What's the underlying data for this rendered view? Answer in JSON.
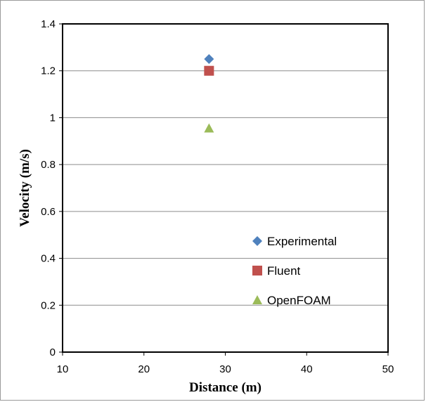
{
  "chart_data": {
    "type": "scatter",
    "title": "",
    "xlabel": "Distance (m)",
    "ylabel": "Velocity (m/s)",
    "xlim": [
      10,
      50
    ],
    "ylim": [
      0,
      1.4
    ],
    "xticks": [
      "10",
      "20",
      "30",
      "40",
      "50"
    ],
    "yticks": [
      "0",
      "0.2",
      "0.4",
      "0.6",
      "0.8",
      "1",
      "1.2",
      "1.4"
    ],
    "grid": "horizontal",
    "legend_position": "right-inside",
    "series": [
      {
        "name": "Experimental",
        "marker": "diamond",
        "color": "#4f81bd",
        "points": [
          {
            "x": 28,
            "y": 1.25
          }
        ]
      },
      {
        "name": "Fluent",
        "marker": "square",
        "color": "#c0504d",
        "points": [
          {
            "x": 28,
            "y": 1.2
          }
        ]
      },
      {
        "name": "OpenFOAM",
        "marker": "triangle",
        "color": "#9bbb59",
        "points": [
          {
            "x": 28,
            "y": 0.955
          }
        ]
      }
    ]
  }
}
